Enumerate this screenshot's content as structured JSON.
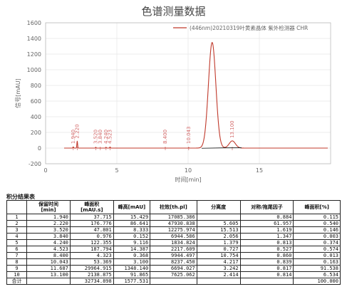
{
  "chart_data": {
    "type": "line",
    "title": "色谱测量数据",
    "xlabel": "时间[min]",
    "ylabel": "信号[mAU]",
    "legend": "(446nm)20210319叶黄素晶体 紫外检测器 CHR",
    "legend_position": "top-right",
    "xlim": [
      0,
      20
    ],
    "ylim": [
      -200,
      1600
    ],
    "xticks": [
      0,
      5,
      10,
      15
    ],
    "yticks": [
      -200,
      0,
      200,
      400,
      600,
      800,
      1000,
      1200,
      1400,
      1600
    ],
    "grid": true,
    "line_color": "#c0392b",
    "peaks": [
      {
        "rt": 1.94,
        "label": "1.940",
        "height": 15.429
      },
      {
        "rt": 2.22,
        "label": "2.220",
        "height": 86.641
      },
      {
        "rt": 3.52,
        "label": "3.520",
        "height": 8.333
      },
      {
        "rt": 3.84,
        "label": "3.840",
        "height": 0.152
      },
      {
        "rt": 4.24,
        "label": "4.240",
        "height": 9.116
      },
      {
        "rt": 4.523,
        "label": "4.523",
        "height": 14.387
      },
      {
        "rt": 8.4,
        "label": "8.400",
        "height": 0.368
      },
      {
        "rt": 10.043,
        "label": "10.043",
        "height": 3.1
      },
      {
        "rt": 11.687,
        "label": "",
        "height": 1348.14
      },
      {
        "rt": 13.1,
        "label": "13.100",
        "height": 91.865
      }
    ]
  },
  "table": {
    "caption": "积分结果表",
    "headers": [
      "",
      "保留时间\n[min]",
      "峰面积\n[mAU.s]",
      "峰高[mAU]",
      "柱效[th.pl]",
      "分离度",
      "对称/拖尾因子",
      "峰面积[%]"
    ],
    "rows": [
      [
        "1",
        "1.940",
        "37.715",
        "15.429",
        "17085.386",
        "",
        "0.884",
        "0.115"
      ],
      [
        "2",
        "2.220",
        "176.776",
        "86.641",
        "47930.838",
        "5.605",
        "61.957",
        "0.540"
      ],
      [
        "3",
        "3.520",
        "47.801",
        "8.333",
        "12275.974",
        "15.513",
        "1.619",
        "0.146"
      ],
      [
        "4",
        "3.840",
        "0.976",
        "0.152",
        "6944.586",
        "2.056",
        "1.347",
        "0.003"
      ],
      [
        "5",
        "4.240",
        "122.355",
        "9.116",
        "1834.824",
        "1.379",
        "0.813",
        "0.374"
      ],
      [
        "6",
        "4.523",
        "187.794",
        "14.387",
        "2217.609",
        "0.727",
        "0.527",
        "0.574"
      ],
      [
        "7",
        "8.400",
        "4.323",
        "0.368",
        "9944.497",
        "10.754",
        "0.860",
        "0.013"
      ],
      [
        "8",
        "10.043",
        "53.369",
        "3.100",
        "8237.450",
        "4.217",
        "0.839",
        "0.163"
      ],
      [
        "9",
        "11.687",
        "29964.915",
        "1348.140",
        "6694.027",
        "3.242",
        "0.817",
        "91.538"
      ],
      [
        "10",
        "13.100",
        "2138.875",
        "91.865",
        "7625.062",
        "2.414",
        "0.814",
        "6.534"
      ],
      [
        "合计",
        "",
        "32734.898",
        "1577.531",
        "",
        "",
        "",
        "100.000"
      ]
    ]
  }
}
